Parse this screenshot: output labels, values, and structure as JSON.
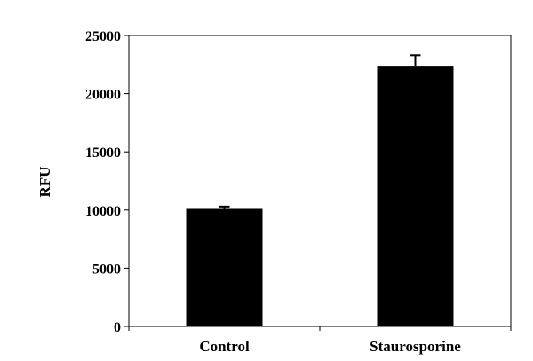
{
  "chart_data": {
    "type": "bar",
    "title": "",
    "xlabel": "",
    "ylabel": "RFU",
    "ylim": [
      0,
      25000
    ],
    "yticks": [
      0,
      5000,
      10000,
      15000,
      20000,
      25000
    ],
    "categories": [
      "Control",
      "Staurosporine"
    ],
    "series": [
      {
        "values": [
          10100,
          22400
        ],
        "error_upper": [
          200,
          900
        ],
        "color": "#000000"
      }
    ],
    "grid": false,
    "legend": "none"
  }
}
